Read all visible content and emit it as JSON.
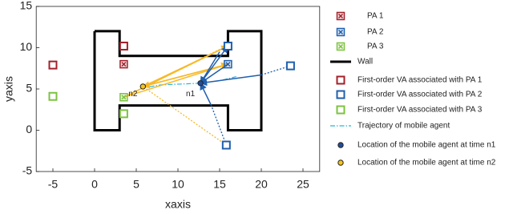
{
  "chart_data": {
    "type": "scatter",
    "xlabel": "xaxis",
    "ylabel": "yaxis",
    "xlim": [
      -7,
      27
    ],
    "ylim": [
      -5,
      15
    ],
    "xticks": [
      -5,
      0,
      5,
      10,
      15,
      20,
      25
    ],
    "yticks": [
      -5,
      0,
      5,
      10,
      15
    ],
    "legend": "outside right",
    "series": [
      {
        "name": "PA 1",
        "color": "#a3202a",
        "marker": "square-x",
        "x": [
          3.5
        ],
        "y": [
          8
        ]
      },
      {
        "name": "PA 2",
        "color": "#1f5fad",
        "marker": "square-x",
        "x": [
          16
        ],
        "y": [
          8
        ]
      },
      {
        "name": "PA 3",
        "color": "#7dc242",
        "marker": "square-x",
        "x": [
          3.5
        ],
        "y": [
          4
        ]
      },
      {
        "name": "Wall",
        "color": "#000000",
        "marker": "line",
        "x": [
          0,
          3,
          3,
          16,
          16,
          20,
          20,
          16,
          16,
          3,
          3,
          0,
          0
        ],
        "y": [
          12,
          12,
          9,
          9,
          12,
          12,
          0,
          0,
          3,
          3,
          0,
          0,
          12
        ]
      },
      {
        "name": "First-order VA associated with PA 1",
        "color": "#a3202a",
        "marker": "square",
        "x": [
          -5,
          3.5
        ],
        "y": [
          7.9,
          10.2
        ]
      },
      {
        "name": "First-order VA associated with PA 2",
        "color": "#1f5fad",
        "marker": "square",
        "x": [
          16,
          23.5,
          15.8
        ],
        "y": [
          10.2,
          7.8,
          -1.8
        ]
      },
      {
        "name": "First-order VA associated with PA 3",
        "color": "#7dc242",
        "marker": "square",
        "x": [
          -5,
          3.5
        ],
        "y": [
          4.1,
          2
        ]
      },
      {
        "name": "Trajectory of mobile agent",
        "color": "#2ab5d8",
        "marker": "dashdot",
        "x": [
          5.5,
          8,
          10.5,
          12.7,
          15,
          17
        ],
        "y": [
          5.1,
          5.5,
          5.6,
          5.7,
          6,
          6.5
        ]
      },
      {
        "name": "Location of the mobile agent at time n1",
        "color": "#1f4e9c",
        "marker": "circle",
        "x": [
          12.7
        ],
        "y": [
          5.7
        ]
      },
      {
        "name": "Location of the mobile agent at time n2",
        "color": "#f5c518",
        "marker": "circle",
        "x": [
          5.8
        ],
        "y": [
          5.3
        ]
      }
    ],
    "arrows": [
      {
        "color": "#f7b928",
        "style": "solid",
        "x": [
          5.8,
          16
        ],
        "y": [
          5.3,
          10.2
        ]
      },
      {
        "color": "#f7b928",
        "style": "solid",
        "x": [
          5.8,
          16
        ],
        "y": [
          5.3,
          8
        ]
      },
      {
        "color": "#f7b928",
        "style": "solid",
        "x": [
          3.5,
          16
        ],
        "y": [
          4,
          10.2
        ]
      },
      {
        "color": "#f7b928",
        "style": "solid",
        "x": [
          3.5,
          16
        ],
        "y": [
          4,
          8
        ]
      },
      {
        "color": "#f7b928",
        "style": "solid",
        "x": [
          16,
          5.8
        ],
        "y": [
          8,
          5.3
        ]
      },
      {
        "color": "#f7b928",
        "style": "dotted",
        "x": [
          15.8,
          5.8
        ],
        "y": [
          -1.8,
          5.3
        ]
      },
      {
        "color": "#f7b928",
        "style": "dotted",
        "x": [
          3.5,
          15.8
        ],
        "y": [
          4,
          10.2
        ]
      },
      {
        "color": "#1f5fad",
        "style": "solid",
        "x": [
          12.7,
          16
        ],
        "y": [
          5.7,
          10.2
        ]
      },
      {
        "color": "#1f5fad",
        "style": "solid",
        "x": [
          16,
          12.7
        ],
        "y": [
          8,
          5.7
        ]
      },
      {
        "color": "#1f5fad",
        "style": "solid",
        "x": [
          15,
          12.7
        ],
        "y": [
          9.5,
          5.7
        ]
      },
      {
        "color": "#1f5fad",
        "style": "dotted",
        "x": [
          23.5,
          20
        ],
        "y": [
          7.8,
          6.7
        ]
      },
      {
        "color": "#1f5fad",
        "style": "solid",
        "x": [
          20,
          12.7
        ],
        "y": [
          6.7,
          5.7
        ]
      },
      {
        "color": "#1f5fad",
        "style": "dotted",
        "x": [
          15.8,
          14
        ],
        "y": [
          -1.8,
          3
        ]
      },
      {
        "color": "#1f5fad",
        "style": "solid",
        "x": [
          14,
          12.7
        ],
        "y": [
          3,
          5.7
        ]
      }
    ],
    "annotations": [
      {
        "text": "n1",
        "x": 11.5,
        "y": 4.4
      },
      {
        "text": "n2",
        "x": 4.6,
        "y": 4.4
      }
    ]
  }
}
